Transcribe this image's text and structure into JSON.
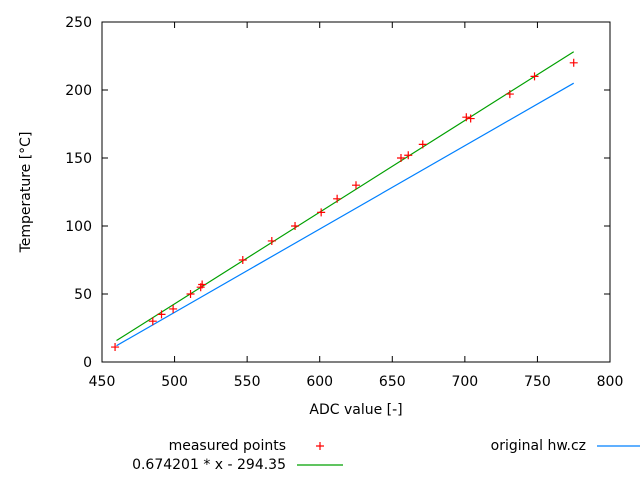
{
  "chart_data": {
    "type": "line",
    "title": "",
    "xlabel": "ADC value [-]",
    "ylabel": "Temperature [°C]",
    "xlim": [
      450,
      800
    ],
    "ylim": [
      0,
      250
    ],
    "xticks": [
      450,
      500,
      550,
      600,
      650,
      700,
      750,
      800
    ],
    "yticks": [
      0,
      50,
      100,
      150,
      200,
      250
    ],
    "grid": false,
    "legend_position": "bottom",
    "series": [
      {
        "name": "measured points",
        "kind": "points",
        "marker": "+",
        "color": "#ff0000",
        "x": [
          459,
          485,
          491,
          499,
          511,
          518,
          519,
          547,
          567,
          583,
          601,
          612,
          625,
          656,
          661,
          671,
          701,
          704,
          731,
          748,
          775
        ],
        "y": [
          11,
          30,
          35,
          39,
          50,
          55,
          57,
          75,
          89,
          100,
          110,
          120,
          130,
          150,
          152,
          160,
          180,
          179,
          197,
          210,
          220
        ]
      },
      {
        "name": "original hw.cz",
        "kind": "line",
        "color": "#0080ff",
        "x": [
          460,
          775
        ],
        "y": [
          12,
          205
        ]
      },
      {
        "name": "0.674201 * x - 294.35",
        "kind": "line",
        "color": "#00a000",
        "slope": 0.674201,
        "intercept": -294.35,
        "x": [
          460,
          775
        ]
      }
    ]
  }
}
